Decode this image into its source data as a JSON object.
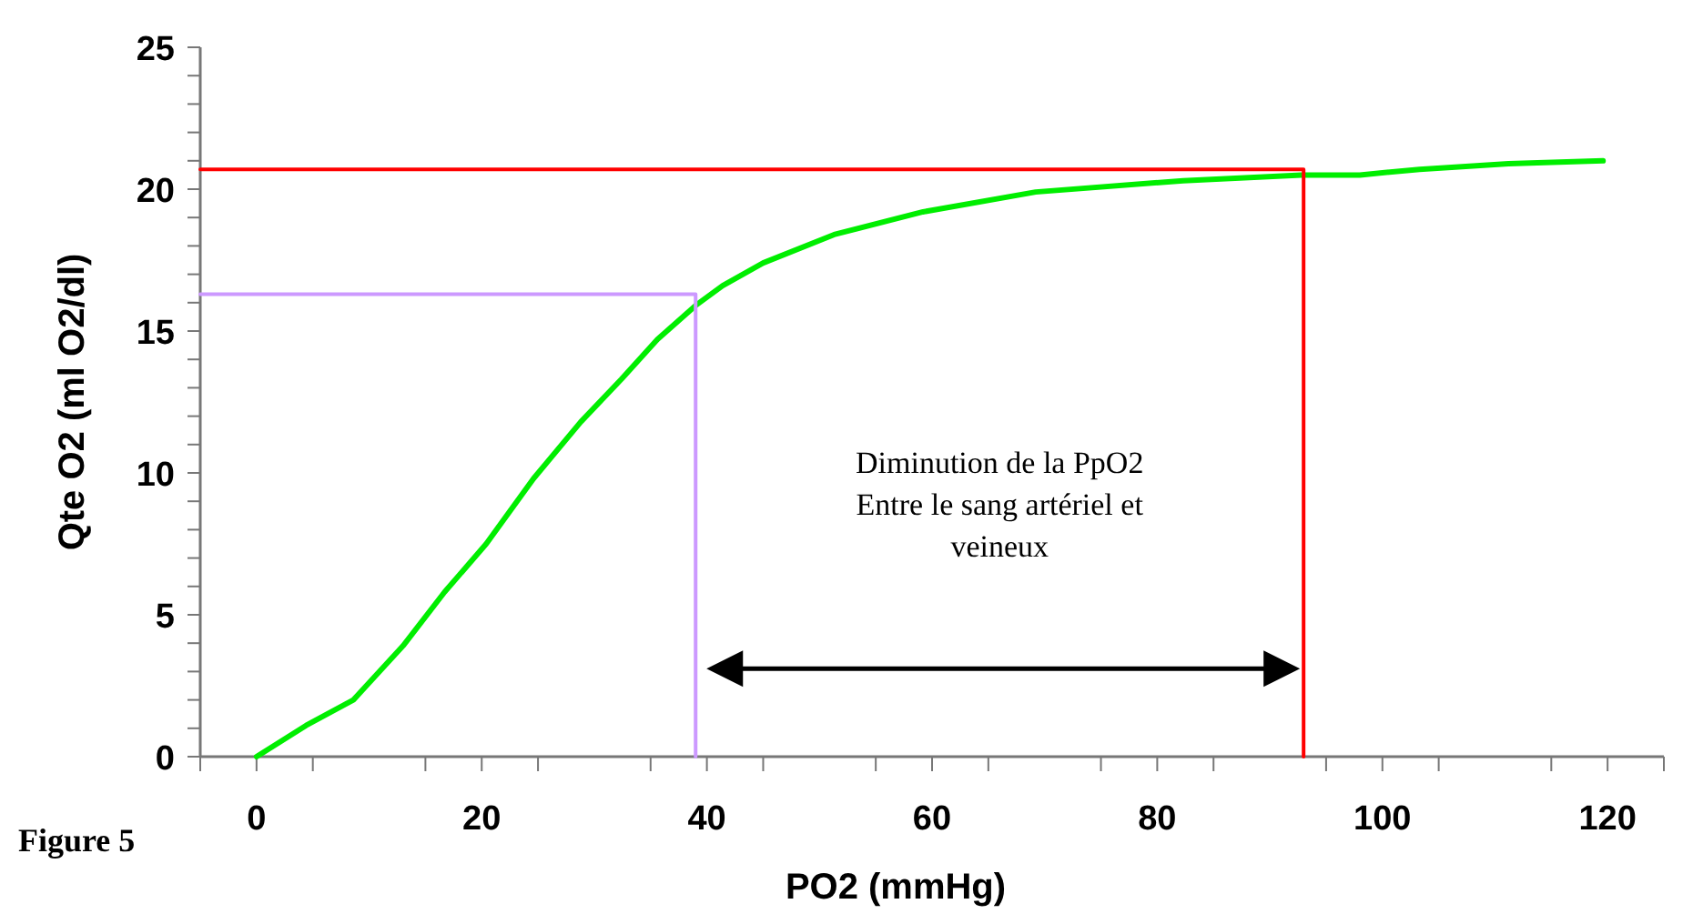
{
  "chart_data": {
    "type": "line",
    "xlabel": "PO2 (mmHg)",
    "ylabel": "Qte O2 (ml O2/dl)",
    "xlim": [
      -5,
      125
    ],
    "ylim": [
      0,
      25
    ],
    "xticks": [
      {
        "value": -5,
        "label": null
      },
      0,
      {
        "value": 5,
        "label": null
      },
      {
        "value": 15,
        "label": null
      },
      20,
      {
        "value": 25,
        "label": null
      },
      {
        "value": 35,
        "label": null
      },
      40,
      {
        "value": 45,
        "label": null
      },
      {
        "value": 55,
        "label": null
      },
      60,
      {
        "value": 65,
        "label": null
      },
      {
        "value": 75,
        "label": null
      },
      80,
      {
        "value": 85,
        "label": null
      },
      {
        "value": 95,
        "label": null
      },
      100,
      {
        "value": 105,
        "label": null
      },
      {
        "value": 115,
        "label": null
      },
      120,
      {
        "value": 125,
        "label": null
      }
    ],
    "yticks": [
      0,
      {
        "value": 1,
        "label": null
      },
      {
        "value": 2,
        "label": null
      },
      {
        "value": 3,
        "label": null
      },
      {
        "value": 4,
        "label": null
      },
      5,
      {
        "value": 6,
        "label": null
      },
      {
        "value": 7,
        "label": null
      },
      {
        "value": 8,
        "label": null
      },
      {
        "value": 9,
        "label": null
      },
      10,
      {
        "value": 11,
        "label": null
      },
      {
        "value": 12,
        "label": null
      },
      {
        "value": 13,
        "label": null
      },
      {
        "value": 14,
        "label": null
      },
      15,
      {
        "value": 16,
        "label": null
      },
      {
        "value": 17,
        "label": null
      },
      {
        "value": 18,
        "label": null
      },
      {
        "value": 19,
        "label": null
      },
      20,
      {
        "value": 21,
        "label": null
      },
      {
        "value": 22,
        "label": null
      },
      {
        "value": 23,
        "label": null
      },
      {
        "value": 24,
        "label": null
      },
      25
    ],
    "grid": false,
    "marker": "none",
    "line_style": "solid",
    "series": [
      {
        "color": "#00ee00",
        "x": [
          0,
          4.4,
          8.6,
          13,
          16.7,
          20.4,
          24.6,
          28.8,
          32.4,
          35.6,
          39,
          41.4,
          45,
          51.3,
          59.2,
          69.2,
          82.3,
          92.8,
          98,
          103.3,
          111.2,
          119.6
        ],
        "values": [
          0,
          1.1,
          2,
          3.9,
          5.8,
          7.5,
          9.8,
          11.8,
          13.3,
          14.7,
          15.9,
          16.6,
          17.4,
          18.4,
          19.2,
          19.9,
          20.3,
          20.5,
          20.5,
          20.7,
          20.9,
          21
        ]
      },
      {
        "color": "#cc99ff",
        "x": [
          -5,
          39,
          39
        ],
        "values": [
          16.3,
          16.3,
          0
        ]
      },
      {
        "color": "#ff0000",
        "x": [
          -5,
          93,
          93
        ],
        "values": [
          20.7,
          20.7,
          0
        ]
      }
    ],
    "annotations": [
      "Diminution de la PpO2\nEntre le sang artériel et\nveineux",
      "Figure 5"
    ]
  }
}
